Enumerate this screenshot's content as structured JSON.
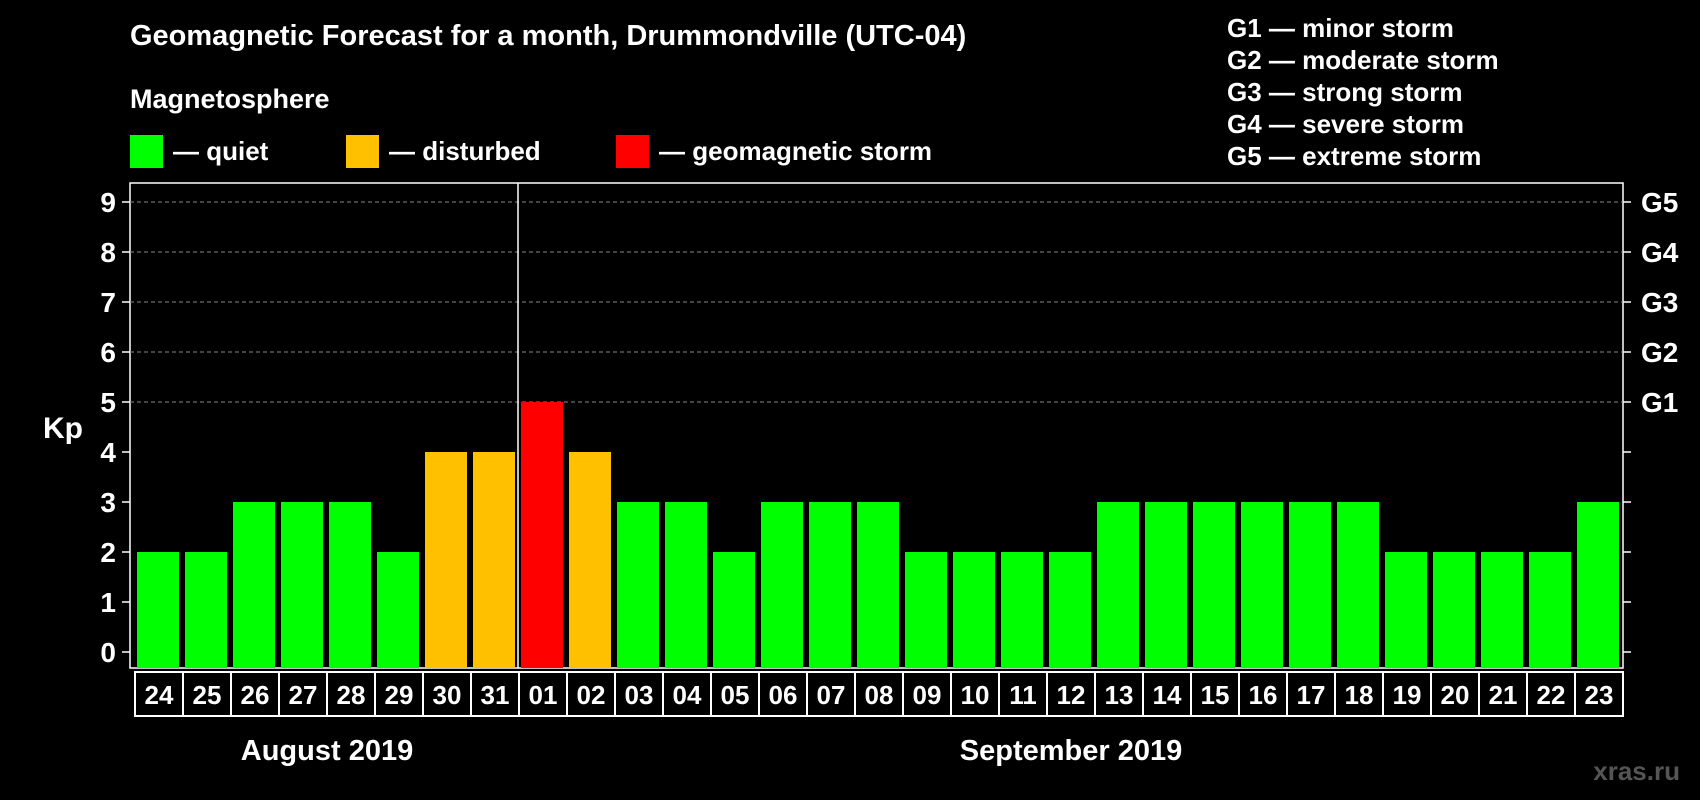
{
  "title": "Geomagnetic Forecast for a month, Drummondville (UTC-04)",
  "subtitle": "Magnetosphere",
  "legend": [
    {
      "label": "— quiet",
      "color": "#00ff00"
    },
    {
      "label": "— disturbed",
      "color": "#ffc000"
    },
    {
      "label": "— geomagnetic storm",
      "color": "#ff0000"
    }
  ],
  "g_legend": [
    "G1 — minor storm",
    "G2 — moderate storm",
    "G3 — strong storm",
    "G4 — severe storm",
    "G5 — extreme storm"
  ],
  "watermark": "xras.ru",
  "months": [
    {
      "label": "August 2019",
      "start_index": 0,
      "end_index": 7
    },
    {
      "label": "September 2019",
      "start_index": 8,
      "end_index": 30
    }
  ],
  "chart_data": {
    "type": "bar",
    "ylabel": "Kp",
    "ylim": [
      0,
      9
    ],
    "yticks": [
      "0",
      "1",
      "2",
      "3",
      "4",
      "5",
      "6",
      "7",
      "8",
      "9"
    ],
    "right_ticks": [
      {
        "value": 5,
        "label": "G1"
      },
      {
        "value": 6,
        "label": "G2"
      },
      {
        "value": 7,
        "label": "G3"
      },
      {
        "value": 8,
        "label": "G4"
      },
      {
        "value": 9,
        "label": "G5"
      }
    ],
    "categories": [
      "24",
      "25",
      "26",
      "27",
      "28",
      "29",
      "30",
      "31",
      "01",
      "02",
      "03",
      "04",
      "05",
      "06",
      "07",
      "08",
      "09",
      "10",
      "11",
      "12",
      "13",
      "14",
      "15",
      "16",
      "17",
      "18",
      "19",
      "20",
      "21",
      "22",
      "23"
    ],
    "values": [
      2,
      2,
      3,
      3,
      3,
      2,
      4,
      4,
      5,
      4,
      3,
      3,
      2,
      3,
      3,
      3,
      2,
      2,
      2,
      2,
      3,
      3,
      3,
      3,
      3,
      3,
      2,
      2,
      2,
      2,
      3
    ],
    "month_divider_index": 8,
    "colors": {
      "quiet": "#00ff00",
      "disturbed": "#ffc000",
      "storm": "#ff0000"
    }
  }
}
